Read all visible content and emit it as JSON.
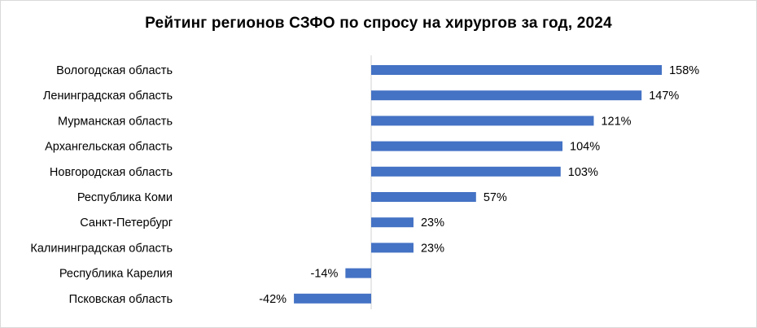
{
  "chart_data": {
    "type": "bar",
    "orientation": "horizontal",
    "title": "Рейтинг регионов СЗФО по спросу на хирургов за год, 2024",
    "categories": [
      "Вологодская область",
      "Ленинградская область",
      "Мурманская область",
      "Архангельская область",
      "Новгородская область",
      "Республика Коми",
      "Санкт-Петербург",
      "Калининградская область",
      "Республика Карелия",
      "Псковская область"
    ],
    "values": [
      158,
      147,
      121,
      104,
      103,
      57,
      23,
      23,
      -14,
      -42
    ],
    "value_labels": [
      "158%",
      "147%",
      "121%",
      "104%",
      "103%",
      "57%",
      "23%",
      "23%",
      "-14%",
      "-42%"
    ],
    "unit": "%",
    "bar_color": "#4472c4",
    "axis_color": "#d9d9d9",
    "xlabel": "",
    "ylabel": ""
  }
}
